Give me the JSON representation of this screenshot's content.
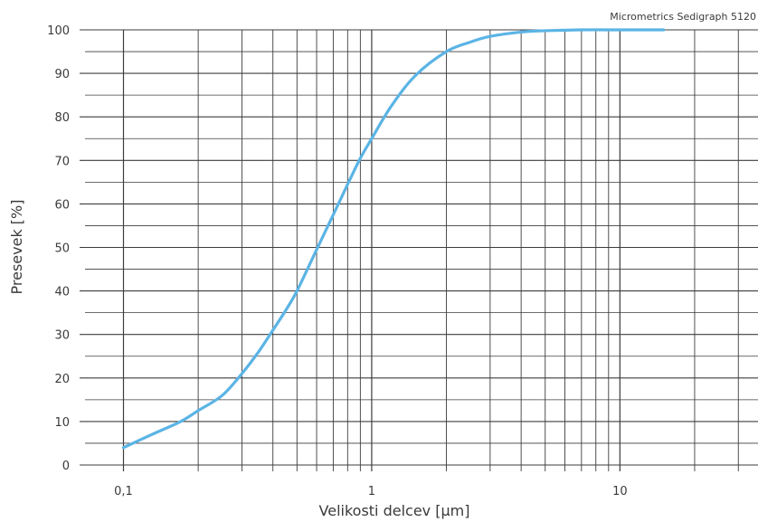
{
  "chart_data": {
    "type": "line",
    "x_scale": "log",
    "xlim": [
      0.07,
      36
    ],
    "ylim": [
      0,
      100
    ],
    "xlabel": "Velikosti delcev [µm]",
    "ylabel": "Presevek [%]",
    "annotation": "Micrometrics Sedigraph 5120",
    "grid": true,
    "x_ticks": [
      {
        "value": 0.1,
        "label": "0,1"
      },
      {
        "value": 1,
        "label": "1"
      },
      {
        "value": 10,
        "label": "10"
      }
    ],
    "y_ticks": [
      0,
      10,
      20,
      30,
      40,
      50,
      60,
      70,
      80,
      90,
      100
    ],
    "line_color": "#5bb4e5",
    "series": [
      {
        "x": [
          0.1,
          0.13,
          0.17,
          0.2,
          0.25,
          0.3,
          0.35,
          0.4,
          0.45,
          0.5,
          0.6,
          0.7,
          0.8,
          0.9,
          1.0,
          1.2,
          1.5,
          2.0,
          2.5,
          3.0,
          4.0,
          5.0,
          7.0,
          10.0,
          15.0
        ],
        "y": [
          4,
          7,
          10,
          12.5,
          16,
          21,
          26,
          31,
          35.5,
          40,
          49.5,
          57.5,
          64.5,
          70.5,
          75,
          82.5,
          89.5,
          95,
          97.2,
          98.5,
          99.5,
          99.8,
          100,
          100,
          100
        ]
      }
    ]
  }
}
